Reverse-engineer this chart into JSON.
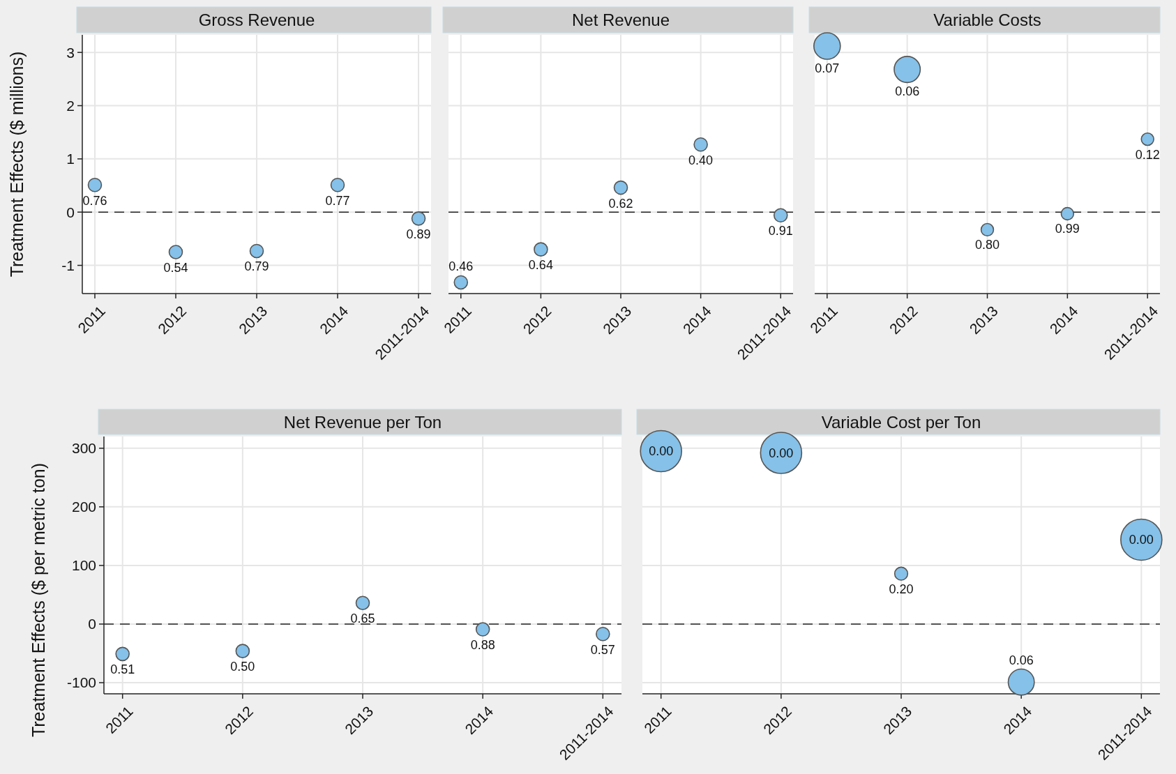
{
  "chart_data": [
    {
      "type": "bubble",
      "title": "Gross Revenue",
      "ylabel": "Treatment Effects ($ millions)",
      "categories": [
        "2011",
        "2012",
        "2013",
        "2014",
        "2011-2014"
      ],
      "ylim": [
        -1.53,
        3.33
      ],
      "yticks": [
        -1,
        0,
        1,
        2,
        3
      ],
      "grid": true,
      "marker": "circle",
      "ref_lines": [
        {
          "axis": "y",
          "value": 0,
          "color": "#222222",
          "line_style": "dashed"
        }
      ],
      "series": [
        {
          "color": "#85c1e9",
          "values": [
            0.51,
            -0.75,
            -0.73,
            0.51,
            -0.12
          ],
          "sizes": [
            1,
            1,
            1,
            1,
            1
          ]
        }
      ],
      "annotations": [
        {
          "text": "0.76",
          "x": "2011",
          "y": 0.51
        },
        {
          "text": "0.54",
          "x": "2012",
          "y": -0.75
        },
        {
          "text": "0.79",
          "x": "2013",
          "y": -0.73
        },
        {
          "text": "0.77",
          "x": "2014",
          "y": 0.51
        },
        {
          "text": "0.89",
          "x": "2011-2014",
          "y": -0.12
        }
      ]
    },
    {
      "type": "bubble",
      "title": "Net Revenue",
      "categories": [
        "2011",
        "2012",
        "2013",
        "2014",
        "2011-2014"
      ],
      "ylim": [
        -1.53,
        3.33
      ],
      "yticks": [
        -1,
        0,
        1,
        2,
        3
      ],
      "tick_labels": "x",
      "grid": true,
      "marker": "circle",
      "ref_lines": [
        {
          "axis": "y",
          "value": 0,
          "color": "#222222",
          "line_style": "dashed"
        }
      ],
      "series": [
        {
          "color": "#85c1e9",
          "values": [
            -1.32,
            -0.7,
            0.46,
            1.27,
            -0.06
          ],
          "sizes": [
            1,
            1,
            1,
            1,
            1
          ]
        }
      ],
      "annotations": [
        {
          "text": "0.46",
          "x": "2011",
          "y": -1.32
        },
        {
          "text": "0.64",
          "x": "2012",
          "y": -0.7
        },
        {
          "text": "0.62",
          "x": "2013",
          "y": 0.46
        },
        {
          "text": "0.40",
          "x": "2014",
          "y": 1.27
        },
        {
          "text": "0.91",
          "x": "2011-2014",
          "y": -0.06
        }
      ]
    },
    {
      "type": "bubble",
      "title": "Variable Costs",
      "categories": [
        "2011",
        "2012",
        "2013",
        "2014",
        "2011-2014"
      ],
      "ylim": [
        -1.53,
        3.33
      ],
      "yticks": [
        -1,
        0,
        1,
        2,
        3
      ],
      "tick_labels": "x",
      "grid": true,
      "marker": "circle",
      "ref_lines": [
        {
          "axis": "y",
          "value": 0,
          "color": "#222222",
          "line_style": "dashed"
        }
      ],
      "series": [
        {
          "color": "#85c1e9",
          "values": [
            3.12,
            2.68,
            -0.33,
            -0.03,
            1.37
          ],
          "sizes": [
            1,
            0.97,
            0.22,
            0.22,
            0.22
          ]
        }
      ],
      "annotations": [
        {
          "text": "0.07",
          "x": "2011",
          "y": 3.12
        },
        {
          "text": "0.06",
          "x": "2012",
          "y": 2.68
        },
        {
          "text": "0.80",
          "x": "2013",
          "y": -0.33
        },
        {
          "text": "0.99",
          "x": "2014",
          "y": -0.03
        },
        {
          "text": "0.12",
          "x": "2011-2014",
          "y": 1.37
        }
      ]
    },
    {
      "type": "bubble",
      "title": "Net Revenue per Ton",
      "ylabel": "Treatment Effects ($ per metric ton)",
      "categories": [
        "2011",
        "2012",
        "2013",
        "2014",
        "2011-2014"
      ],
      "ylim": [
        -119,
        320
      ],
      "yticks": [
        -100,
        0,
        100,
        200,
        300
      ],
      "grid": true,
      "marker": "circle",
      "ref_lines": [
        {
          "axis": "y",
          "value": 0,
          "color": "#222222",
          "line_style": "dashed"
        }
      ],
      "series": [
        {
          "color": "#85c1e9",
          "values": [
            -51,
            -46,
            36,
            -9,
            -17
          ],
          "sizes": [
            1,
            1,
            1,
            1,
            1
          ]
        }
      ],
      "annotations": [
        {
          "text": "0.51",
          "x": "2011",
          "y": -51
        },
        {
          "text": "0.50",
          "x": "2012",
          "y": -46
        },
        {
          "text": "0.65",
          "x": "2013",
          "y": 36
        },
        {
          "text": "0.88",
          "x": "2014",
          "y": -9
        },
        {
          "text": "0.57",
          "x": "2011-2014",
          "y": -17
        }
      ]
    },
    {
      "type": "bubble",
      "title": "Variable Cost per Ton",
      "categories": [
        "2011",
        "2012",
        "2013",
        "2014",
        "2011-2014"
      ],
      "ylim": [
        -119,
        320
      ],
      "yticks": [
        -100,
        0,
        100,
        200,
        300
      ],
      "tick_labels": "x",
      "grid": true,
      "marker": "circle",
      "ref_lines": [
        {
          "axis": "y",
          "value": 0,
          "color": "#222222",
          "line_style": "dashed"
        }
      ],
      "series": [
        {
          "color": "#85c1e9",
          "values": [
            295,
            292,
            86,
            -99,
            144
          ],
          "sizes": [
            1,
            1,
            0.1,
            0.4,
            1
          ]
        }
      ],
      "annotations": [
        {
          "text": "0.00",
          "x": "2011",
          "y": 295
        },
        {
          "text": "0.00",
          "x": "2012",
          "y": 292
        },
        {
          "text": "0.20",
          "x": "2013",
          "y": 86
        },
        {
          "text": "0.06",
          "x": "2014",
          "y": -99
        },
        {
          "text": "0.00",
          "x": "2011-2014",
          "y": 144
        }
      ]
    }
  ]
}
